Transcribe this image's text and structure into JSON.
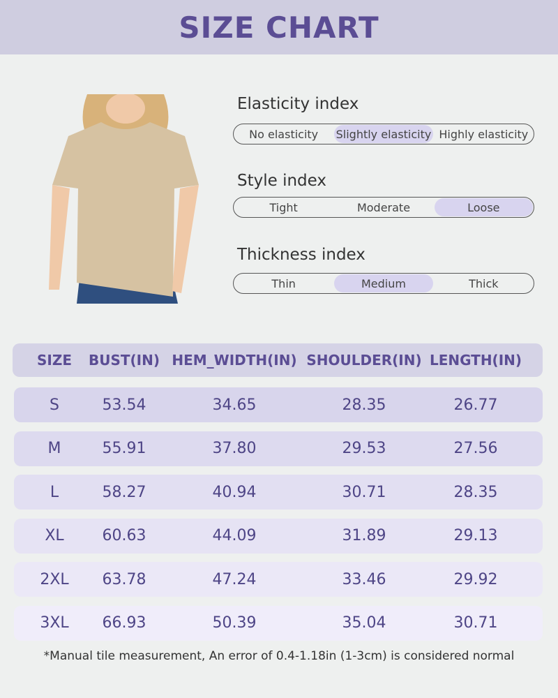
{
  "header": {
    "title": "SIZE CHART"
  },
  "indexes": [
    {
      "label": "Elasticity index",
      "options": [
        "No elasticity",
        "Slightly elasticity",
        "Highly elasticity"
      ],
      "selected": 1
    },
    {
      "label": "Style index",
      "options": [
        "Tight",
        "Moderate",
        "Loose"
      ],
      "selected": 2
    },
    {
      "label": "Thickness index",
      "options": [
        "Thin",
        "Medium",
        "Thick"
      ],
      "selected": 1
    }
  ],
  "table": {
    "columns": [
      "SIZE",
      "BUST(IN)",
      "HEM_WIDTH(IN)",
      "SHOULDER(IN)",
      "LENGTH(IN)"
    ],
    "rows": [
      [
        "S",
        "53.54",
        "34.65",
        "28.35",
        "26.77"
      ],
      [
        "M",
        "55.91",
        "37.80",
        "29.53",
        "27.56"
      ],
      [
        "L",
        "58.27",
        "40.94",
        "30.71",
        "28.35"
      ],
      [
        "XL",
        "60.63",
        "44.09",
        "31.89",
        "29.13"
      ],
      [
        "2XL",
        "63.78",
        "47.24",
        "33.46",
        "29.92"
      ],
      [
        "3XL",
        "66.93",
        "50.39",
        "35.04",
        "30.71"
      ]
    ]
  },
  "footnote": "*Manual tile measurement, An error of 0.4-1.18in (1-3cm) is considered normal"
}
